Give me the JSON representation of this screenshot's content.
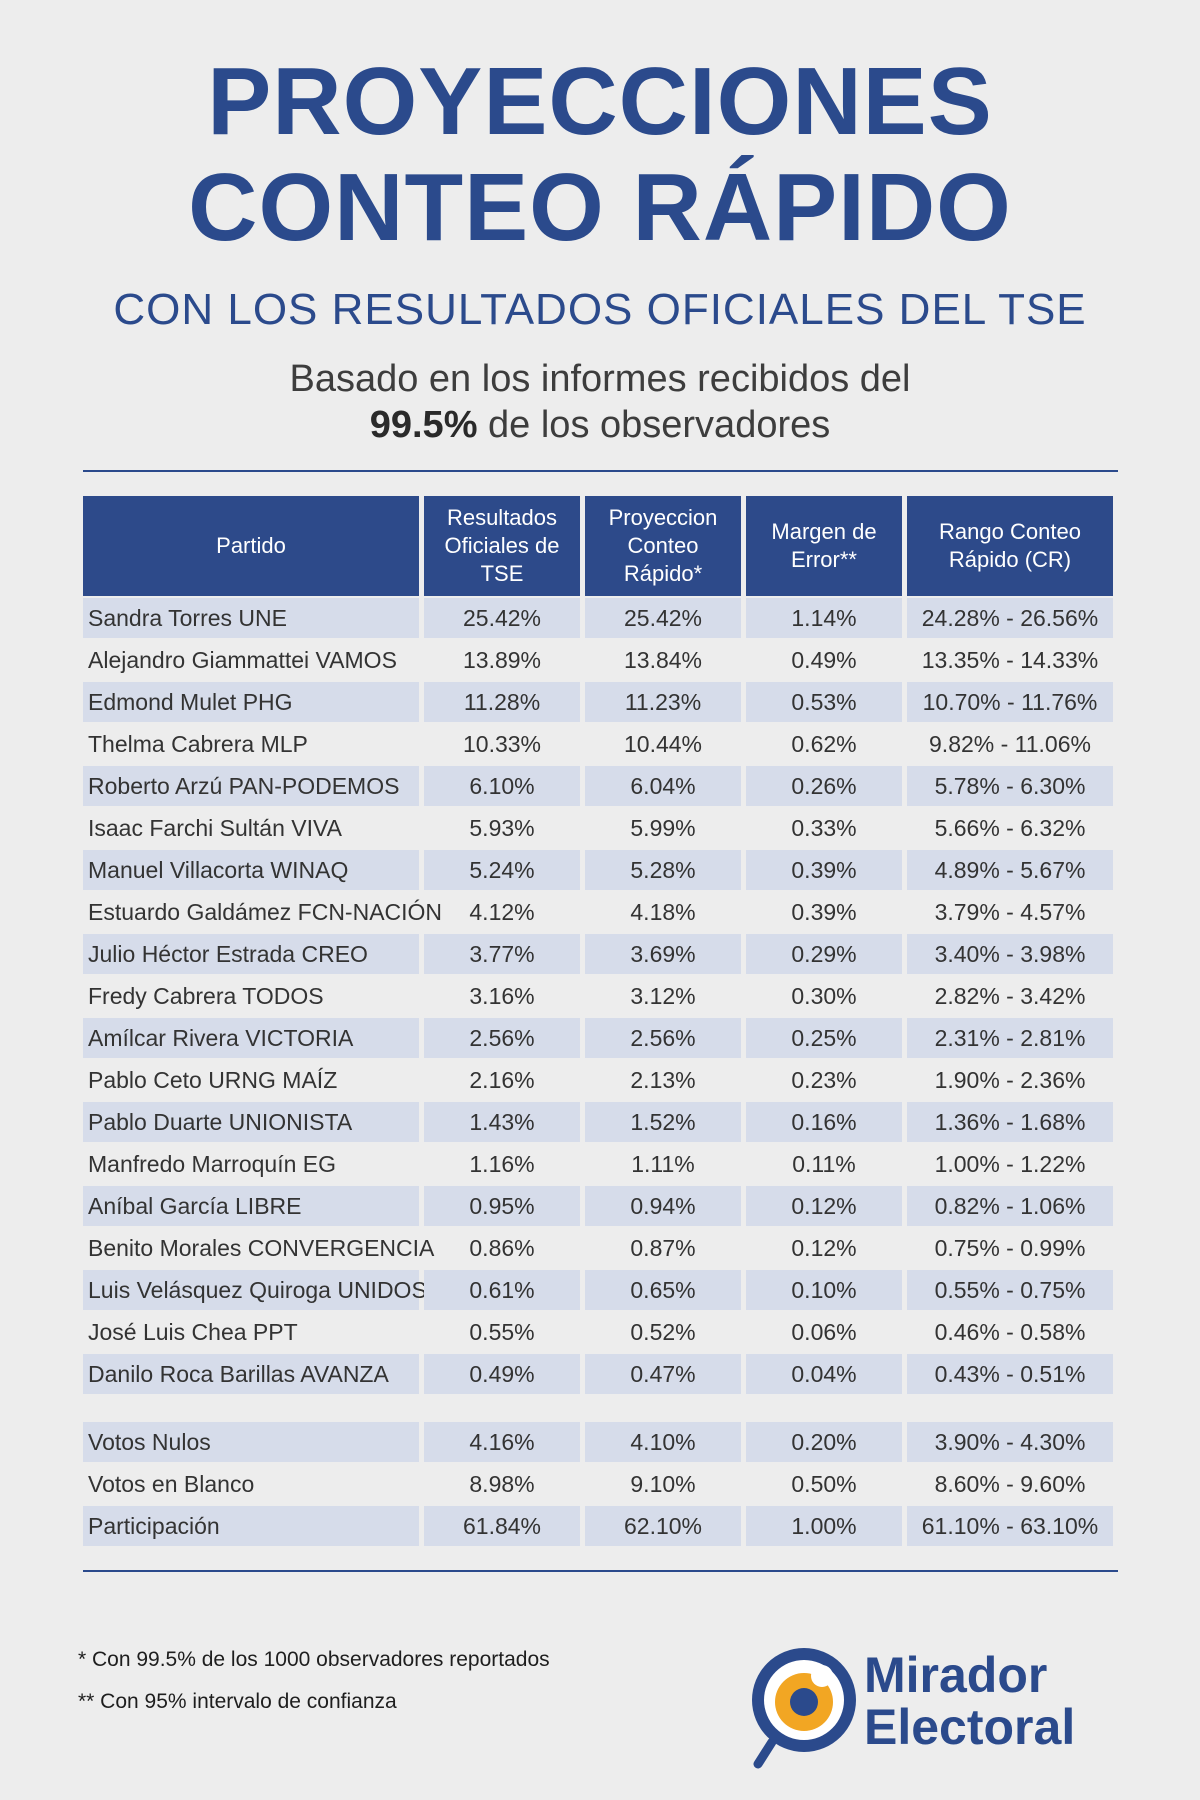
{
  "title": {
    "line1": "PROYECCIONES",
    "line2": "CONTEO RÁPIDO"
  },
  "subtitle": "CON LOS RESULTADOS OFICIALES DEL TSE",
  "description": {
    "line1": "Basado en los informes recibidos del",
    "highlight": "99.5%",
    "line2_rest": " de los observadores"
  },
  "table": {
    "headers": [
      "Partido",
      "Resultados Oficiales de TSE",
      "Proyeccion Conteo Rápido*",
      "Margen de Error**",
      "Rango Conteo Rápido (CR)"
    ],
    "rows": [
      [
        "Sandra Torres UNE",
        "25.42%",
        "25.42%",
        "1.14%",
        "24.28% - 26.56%"
      ],
      [
        "Alejandro Giammattei VAMOS",
        "13.89%",
        "13.84%",
        "0.49%",
        "13.35% - 14.33%"
      ],
      [
        "Edmond Mulet PHG",
        "11.28%",
        "11.23%",
        "0.53%",
        "10.70% - 11.76%"
      ],
      [
        "Thelma Cabrera MLP",
        "10.33%",
        "10.44%",
        "0.62%",
        "9.82% - 11.06%"
      ],
      [
        "Roberto Arzú PAN-PODEMOS",
        "6.10%",
        "6.04%",
        "0.26%",
        "5.78% - 6.30%"
      ],
      [
        "Isaac Farchi Sultán VIVA",
        "5.93%",
        "5.99%",
        "0.33%",
        "5.66% - 6.32%"
      ],
      [
        "Manuel Villacorta WINAQ",
        "5.24%",
        "5.28%",
        "0.39%",
        "4.89% - 5.67%"
      ],
      [
        "Estuardo Galdámez FCN-NACIÓN",
        "4.12%",
        "4.18%",
        "0.39%",
        "3.79% - 4.57%"
      ],
      [
        "Julio Héctor Estrada CREO",
        "3.77%",
        "3.69%",
        "0.29%",
        "3.40% - 3.98%"
      ],
      [
        "Fredy Cabrera TODOS",
        "3.16%",
        "3.12%",
        "0.30%",
        "2.82% - 3.42%"
      ],
      [
        "Amílcar Rivera VICTORIA",
        "2.56%",
        "2.56%",
        "0.25%",
        "2.31% - 2.81%"
      ],
      [
        "Pablo Ceto URNG MAÍZ",
        "2.16%",
        "2.13%",
        "0.23%",
        "1.90% - 2.36%"
      ],
      [
        "Pablo Duarte UNIONISTA",
        "1.43%",
        "1.52%",
        "0.16%",
        "1.36% - 1.68%"
      ],
      [
        "Manfredo Marroquín EG",
        "1.16%",
        "1.11%",
        "0.11%",
        "1.00% - 1.22%"
      ],
      [
        "Aníbal García LIBRE",
        "0.95%",
        "0.94%",
        "0.12%",
        "0.82% - 1.06%"
      ],
      [
        "Benito Morales CONVERGENCIA",
        "0.86%",
        "0.87%",
        "0.12%",
        "0.75% - 0.99%"
      ],
      [
        "Luis Velásquez Quiroga UNIDOS",
        "0.61%",
        "0.65%",
        "0.10%",
        "0.55% - 0.75%"
      ],
      [
        "José Luis Chea PPT",
        "0.55%",
        "0.52%",
        "0.06%",
        "0.46% - 0.58%"
      ],
      [
        "Danilo Roca Barillas AVANZA",
        "0.49%",
        "0.47%",
        "0.04%",
        "0.43% - 0.51%"
      ]
    ],
    "summary_rows": [
      [
        "Votos Nulos",
        "4.16%",
        "4.10%",
        "0.20%",
        "3.90% - 4.30%"
      ],
      [
        "Votos en Blanco",
        "8.98%",
        "9.10%",
        "0.50%",
        "8.60% - 9.60%"
      ],
      [
        "Participación",
        "61.84%",
        "62.10%",
        "1.00%",
        "61.10% - 63.10%"
      ]
    ]
  },
  "footnotes": [
    "* Con 99.5% de los 1000 observadores reportados",
    "** Con 95% intervalo de confianza"
  ],
  "logo": {
    "line1": "Mirador",
    "line2": "Electoral"
  },
  "colors": {
    "brand_blue": "#2b4a8c",
    "row_shade": "#d6dcea",
    "eye_orange": "#f2a623"
  }
}
